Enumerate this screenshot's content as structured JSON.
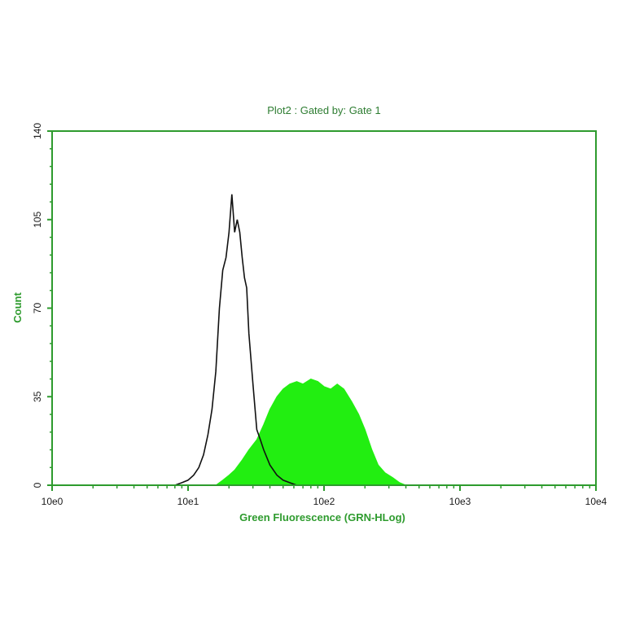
{
  "chart_data": {
    "type": "area",
    "title": "Plot2 : Gated by: Gate 1",
    "xlabel": "Green Fluorescence (GRN-HLog)",
    "ylabel": "Count",
    "x_scale": "log",
    "xlim": [
      1,
      10000
    ],
    "ylim": [
      0,
      140
    ],
    "x_tick_labels": [
      "10e0",
      "10e1",
      "10e2",
      "10e3",
      "10e4"
    ],
    "x_tick_values": [
      1,
      10,
      100,
      1000,
      10000
    ],
    "y_tick_labels": [
      "0",
      "35",
      "70",
      "105",
      "140"
    ],
    "y_tick_values": [
      0,
      35,
      70,
      105,
      140
    ],
    "grid": false,
    "colors": {
      "axis": "#2e9b2e",
      "filled": "#22ee11",
      "outline": "#111111"
    },
    "series": [
      {
        "style": "filled",
        "x": [
          14,
          16,
          18,
          20,
          22,
          25,
          28,
          32,
          36,
          40,
          45,
          50,
          56,
          63,
          70,
          80,
          90,
          100,
          112,
          125,
          140,
          160,
          180,
          200,
          225,
          250,
          280,
          320,
          360,
          400
        ],
        "y": [
          0,
          0,
          2,
          4,
          6,
          10,
          14,
          18,
          24,
          30,
          35,
          38,
          40,
          41,
          40,
          42,
          41,
          39,
          38,
          40,
          38,
          33,
          28,
          22,
          14,
          8,
          5,
          3,
          1,
          0
        ]
      },
      {
        "style": "outline",
        "x": [
          7,
          8,
          9,
          10,
          11,
          12,
          13,
          14,
          15,
          16,
          17,
          18,
          19,
          20,
          21,
          22,
          23,
          24,
          25,
          26,
          27,
          28,
          30,
          32,
          34,
          36,
          40,
          45,
          50,
          56,
          63
        ],
        "y": [
          0,
          0,
          1,
          2,
          4,
          7,
          12,
          20,
          30,
          45,
          70,
          85,
          90,
          100,
          115,
          100,
          105,
          100,
          90,
          82,
          78,
          60,
          40,
          22,
          18,
          14,
          8,
          4,
          2,
          1,
          0
        ]
      }
    ]
  }
}
